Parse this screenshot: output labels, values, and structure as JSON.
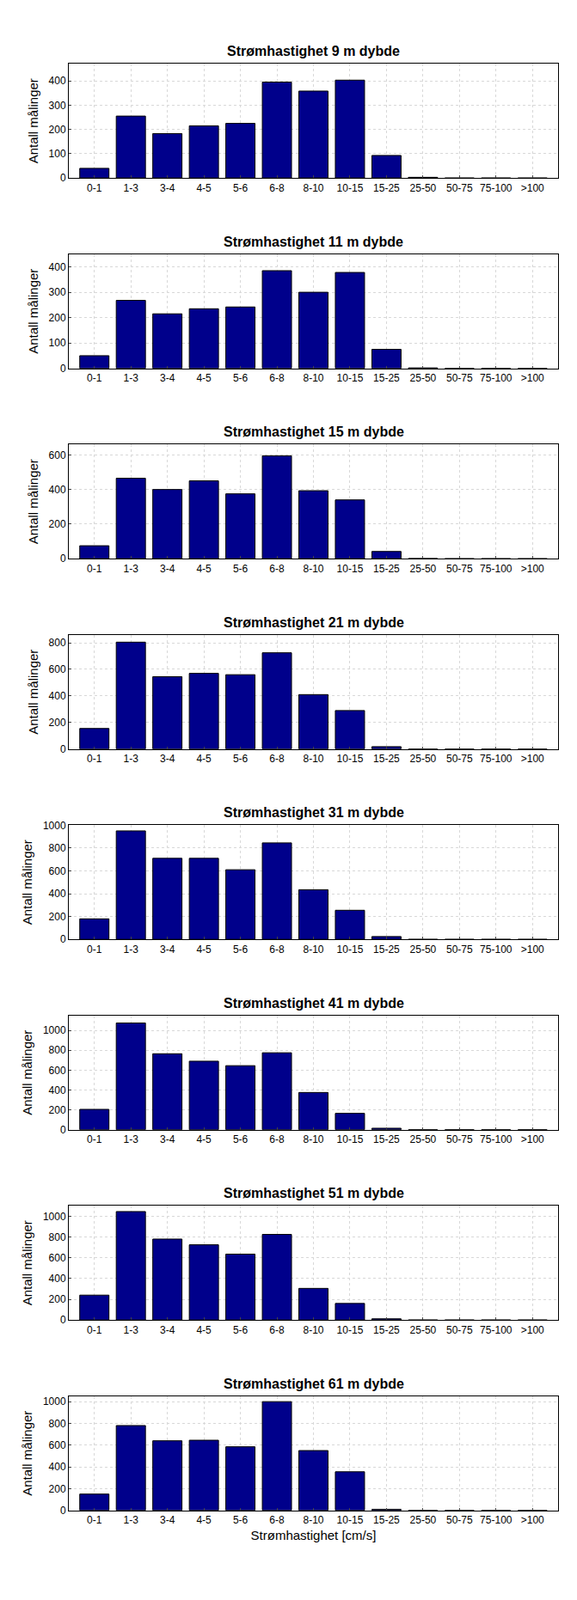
{
  "chart_data": [
    {
      "type": "bar",
      "title": "Strømhastighet 9 m dybde",
      "y_label": "Antall målinger",
      "categories": [
        "0-1",
        "1-3",
        "3-4",
        "4-5",
        "5-6",
        "6-8",
        "8-10",
        "10-15",
        "15-25",
        "25-50",
        "50-75",
        "75-100",
        ">100"
      ],
      "values": [
        40,
        255,
        183,
        215,
        225,
        395,
        358,
        403,
        93,
        3,
        0,
        0,
        0
      ],
      "color": "#00008b",
      "ylim": [
        0,
        470
      ],
      "yticks": [
        0,
        100,
        200,
        300,
        400
      ],
      "grid": true
    },
    {
      "type": "bar",
      "title": "Strømhastighet 11 m dybde",
      "y_label": "Antall målinger",
      "categories": [
        "0-1",
        "1-3",
        "3-4",
        "4-5",
        "5-6",
        "6-8",
        "8-10",
        "10-15",
        "15-25",
        "25-50",
        "50-75",
        "75-100",
        ">100"
      ],
      "values": [
        50,
        268,
        215,
        235,
        242,
        385,
        300,
        378,
        75,
        2,
        0,
        0,
        0
      ],
      "color": "#00008b",
      "ylim": [
        0,
        450
      ],
      "yticks": [
        0,
        100,
        200,
        300,
        400
      ],
      "grid": true
    },
    {
      "type": "bar",
      "title": "Strømhastighet 15 m dybde",
      "y_label": "Antall målinger",
      "categories": [
        "0-1",
        "1-3",
        "3-4",
        "4-5",
        "5-6",
        "6-8",
        "8-10",
        "10-15",
        "15-25",
        "25-50",
        "50-75",
        "75-100",
        ">100"
      ],
      "values": [
        75,
        465,
        400,
        450,
        375,
        595,
        393,
        340,
        42,
        1,
        0,
        0,
        0
      ],
      "color": "#00008b",
      "ylim": [
        0,
        660
      ],
      "yticks": [
        0,
        200,
        400,
        600
      ],
      "grid": true
    },
    {
      "type": "bar",
      "title": "Strømhastighet 21 m dybde",
      "y_label": "Antall målinger",
      "categories": [
        "0-1",
        "1-3",
        "3-4",
        "4-5",
        "5-6",
        "6-8",
        "8-10",
        "10-15",
        "15-25",
        "25-50",
        "50-75",
        "75-100",
        ">100"
      ],
      "values": [
        155,
        805,
        545,
        570,
        560,
        725,
        410,
        290,
        18,
        0,
        0,
        0,
        0
      ],
      "color": "#00008b",
      "ylim": [
        0,
        860
      ],
      "yticks": [
        0,
        200,
        400,
        600,
        800
      ],
      "grid": true
    },
    {
      "type": "bar",
      "title": "Strømhastighet 31 m dybde",
      "y_label": "Antall målinger",
      "categories": [
        "0-1",
        "1-3",
        "3-4",
        "4-5",
        "5-6",
        "6-8",
        "8-10",
        "10-15",
        "15-25",
        "25-50",
        "50-75",
        "75-100",
        ">100"
      ],
      "values": [
        180,
        950,
        710,
        710,
        610,
        845,
        435,
        255,
        25,
        0,
        0,
        0,
        0
      ],
      "color": "#00008b",
      "ylim": [
        0,
        1000
      ],
      "yticks": [
        0,
        200,
        400,
        600,
        800,
        1000
      ],
      "grid": true
    },
    {
      "type": "bar",
      "title": "Strømhastighet 41 m dybde",
      "y_label": "Antall målinger",
      "categories": [
        "0-1",
        "1-3",
        "3-4",
        "4-5",
        "5-6",
        "6-8",
        "8-10",
        "10-15",
        "15-25",
        "25-50",
        "50-75",
        "75-100",
        ">100"
      ],
      "values": [
        205,
        1075,
        765,
        690,
        645,
        775,
        375,
        165,
        15,
        0,
        0,
        0,
        0
      ],
      "color": "#00008b",
      "ylim": [
        0,
        1150
      ],
      "yticks": [
        0,
        200,
        400,
        600,
        800,
        1000
      ],
      "grid": true
    },
    {
      "type": "bar",
      "title": "Strømhastighet 51 m dybde",
      "y_label": "Antall målinger",
      "categories": [
        "0-1",
        "1-3",
        "3-4",
        "4-5",
        "5-6",
        "6-8",
        "8-10",
        "10-15",
        "15-25",
        "25-50",
        "50-75",
        "75-100",
        ">100"
      ],
      "values": [
        240,
        1045,
        780,
        725,
        635,
        825,
        305,
        160,
        12,
        0,
        0,
        0,
        0
      ],
      "color": "#00008b",
      "ylim": [
        0,
        1100
      ],
      "yticks": [
        0,
        200,
        400,
        600,
        800,
        1000
      ],
      "grid": true
    },
    {
      "type": "bar",
      "title": "Strømhastighet 61 m dybde",
      "y_label": "Antall målinger",
      "x_label": "Strømhastighet [cm/s]",
      "categories": [
        "0-1",
        "1-3",
        "3-4",
        "4-5",
        "5-6",
        "6-8",
        "8-10",
        "10-15",
        "15-25",
        "25-50",
        "50-75",
        "75-100",
        ">100"
      ],
      "values": [
        150,
        780,
        640,
        645,
        585,
        1000,
        550,
        355,
        10,
        0,
        0,
        0,
        0
      ],
      "color": "#00008b",
      "ylim": [
        0,
        1050
      ],
      "yticks": [
        0,
        200,
        400,
        600,
        800,
        1000
      ],
      "grid": true
    }
  ]
}
